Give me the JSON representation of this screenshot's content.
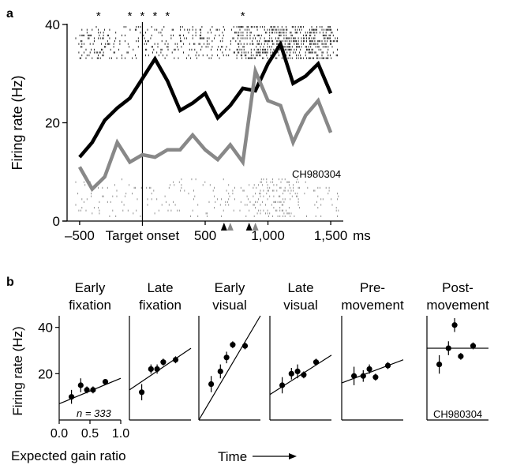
{
  "figure": {
    "panel_a_letter": "a",
    "panel_b_letter": "b"
  },
  "chart_data": [
    {
      "panel": "a",
      "type": "line",
      "ylabel": "Firing rate (Hz)",
      "xunit": "ms",
      "xlim": [
        -600,
        1600
      ],
      "ylim": [
        0,
        40
      ],
      "yticks": [
        0,
        20,
        40
      ],
      "xticks": [
        {
          "value": -500,
          "label": "–500"
        },
        {
          "value": 500,
          "label": "500"
        },
        {
          "value": 1000,
          "label": "1,000"
        },
        {
          "value": 1500,
          "label": "1,500"
        }
      ],
      "event_label": "Target onset",
      "event_x": 0,
      "annotation": "CH980304",
      "asterisk_symbol": "*",
      "asterisk_x": [
        -350,
        -100,
        0,
        100,
        200,
        800
      ],
      "arrow_x": {
        "black": [
          650,
          850
        ],
        "gray": [
          700,
          900
        ]
      },
      "x": [
        -500,
        -400,
        -300,
        -200,
        -100,
        0,
        100,
        200,
        300,
        400,
        500,
        600,
        700,
        800,
        900,
        1000,
        1100,
        1200,
        1300,
        1400,
        1500
      ],
      "series": [
        {
          "color": "#000000",
          "values": [
            13,
            16,
            20.5,
            23,
            25,
            29,
            33,
            28.5,
            22.5,
            24,
            26,
            21,
            23.5,
            27,
            26.5,
            32,
            36,
            28,
            29.5,
            32,
            26
          ]
        },
        {
          "color": "#888888",
          "values": [
            11,
            6.5,
            9,
            16,
            12,
            13.5,
            13,
            14.5,
            14.5,
            17.5,
            14.5,
            12.5,
            15.5,
            12,
            30.5,
            24.5,
            23.5,
            16,
            21.5,
            24.5,
            18
          ]
        }
      ]
    },
    {
      "panel": "b",
      "type": "scatter",
      "ylabel": "Firing rate (Hz)",
      "xlabel": "Expected gain ratio",
      "time_label": "Time",
      "xlim": [
        0,
        1
      ],
      "ylim": [
        0,
        45
      ],
      "yticks": [
        20,
        40
      ],
      "xticks": [
        {
          "value": 0,
          "label": "0.0"
        },
        {
          "value": 0.5,
          "label": "0.5"
        },
        {
          "value": 1,
          "label": "1.0"
        }
      ],
      "n_label": "n = 333",
      "annotation": "CH980304",
      "epochs": [
        {
          "title": [
            "Early",
            "fixation"
          ],
          "x": [
            0.2,
            0.35,
            0.45,
            0.55,
            0.75
          ],
          "y": [
            10,
            15,
            13,
            13,
            16.5
          ],
          "err": [
            3,
            3,
            1.5,
            1.5,
            1.2
          ],
          "fit": [
            7,
            18
          ]
        },
        {
          "title": [
            "Late",
            "fixation"
          ],
          "x": [
            0.2,
            0.35,
            0.45,
            0.55,
            0.75
          ],
          "y": [
            12,
            22,
            22,
            25,
            26
          ],
          "err": [
            3.5,
            2,
            2,
            1.5,
            1.5
          ],
          "fit": [
            13,
            31
          ]
        },
        {
          "title": [
            "Early",
            "visual"
          ],
          "x": [
            0.2,
            0.35,
            0.45,
            0.55,
            0.75
          ],
          "y": [
            15.5,
            21,
            27,
            32.5,
            32
          ],
          "err": [
            3.5,
            3,
            2.5,
            1.5,
            1.5
          ],
          "fit": [
            0,
            45
          ]
        },
        {
          "title": [
            "Late",
            "visual"
          ],
          "x": [
            0.2,
            0.35,
            0.45,
            0.55,
            0.75
          ],
          "y": [
            15,
            20,
            21,
            19.5,
            25
          ],
          "err": [
            3.5,
            2.5,
            3,
            1.5,
            1.5
          ],
          "fit": [
            11,
            28
          ]
        },
        {
          "title": [
            "Pre-",
            "movement"
          ],
          "x": [
            0.2,
            0.35,
            0.45,
            0.55,
            0.75
          ],
          "y": [
            19,
            19,
            22,
            18.5,
            23.5
          ],
          "err": [
            4,
            2.5,
            2,
            1.5,
            1.5
          ],
          "fit": [
            16,
            26
          ]
        },
        {
          "title": [
            "Post-",
            "movement"
          ],
          "x": [
            0.2,
            0.35,
            0.45,
            0.55,
            0.75
          ],
          "y": [
            24,
            31,
            41,
            27.5,
            32
          ],
          "err": [
            4,
            3,
            3,
            1.5,
            1.5
          ],
          "fit": [
            31,
            31
          ]
        }
      ]
    }
  ]
}
